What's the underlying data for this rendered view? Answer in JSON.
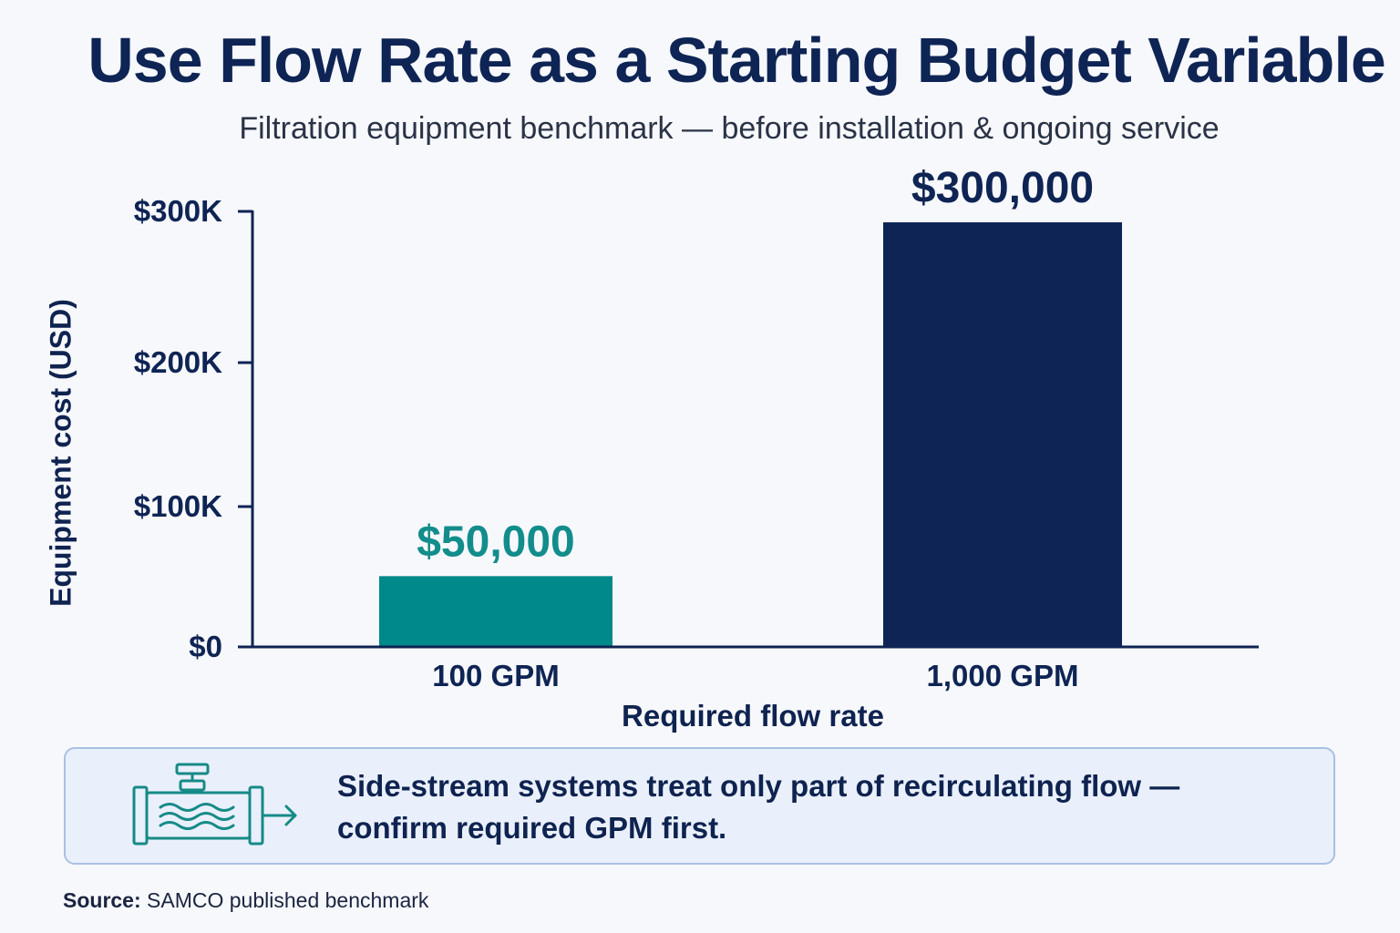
{
  "title": "Use Flow Rate as a Starting Budget Variable",
  "subtitle": "Filtration equipment benchmark — before installation & ongoing service",
  "chart_data": {
    "type": "bar",
    "categories": [
      "100 GPM",
      "1,000 GPM"
    ],
    "values": [
      50000,
      300000
    ],
    "value_labels": [
      "$50,000",
      "$300,000"
    ],
    "bar_colors": [
      "#00898a",
      "#0e2454"
    ],
    "label_colors": [
      "#128d8b",
      "#0e2454"
    ],
    "ylim": [
      0,
      300000
    ],
    "yticks": [
      0,
      100000,
      200000,
      300000
    ],
    "ytick_labels": [
      "$0",
      "$100K",
      "$200K",
      "$300K"
    ],
    "xlabel": "Required flow rate",
    "ylabel": "Equipment cost (USD)",
    "grid": false,
    "legend": "none"
  },
  "note": {
    "icon": "pipe-flow-icon",
    "text": "Side-stream systems treat only part of recirculating flow — confirm required GPM first."
  },
  "source": {
    "label": "Source:",
    "text": "SAMCO published benchmark"
  },
  "colors": {
    "navy": "#0e2454",
    "teal": "#00898a",
    "note_background": "#e9f0fb",
    "note_border": "#a9c1e2",
    "page_background": "#f7f8fc"
  }
}
